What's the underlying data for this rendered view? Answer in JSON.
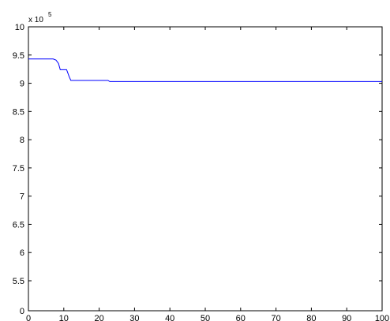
{
  "chart_data": {
    "type": "line",
    "title": "",
    "xlabel": "",
    "ylabel": "",
    "xlim": [
      0,
      100
    ],
    "ylim_display": [
      0,
      10
    ],
    "y_exponent_label": {
      "prefix": "x 10",
      "power": "5"
    },
    "x_ticks": [
      {
        "value": 0,
        "label": "0"
      },
      {
        "value": 10,
        "label": "10"
      },
      {
        "value": 20,
        "label": "20"
      },
      {
        "value": 30,
        "label": "30"
      },
      {
        "value": 40,
        "label": "40"
      },
      {
        "value": 50,
        "label": "50"
      },
      {
        "value": 60,
        "label": "60"
      },
      {
        "value": 70,
        "label": "70"
      },
      {
        "value": 80,
        "label": "80"
      },
      {
        "value": 90,
        "label": "90"
      },
      {
        "value": 100,
        "label": "100"
      }
    ],
    "y_ticks": [
      {
        "value": 10,
        "label": "10"
      },
      {
        "value": 9.5,
        "label": "9.5"
      },
      {
        "value": 9,
        "label": "9"
      },
      {
        "value": 8.5,
        "label": "8.5"
      },
      {
        "value": 8,
        "label": "8"
      },
      {
        "value": 7.5,
        "label": "7.5"
      },
      {
        "value": 7,
        "label": "7"
      },
      {
        "value": 6.5,
        "label": "6.5"
      },
      {
        "value": 6,
        "label": "6"
      },
      {
        "value": 5.5,
        "label": "5.5"
      },
      {
        "value": 0,
        "label": "0"
      }
    ],
    "y_axis_break": {
      "from": 0,
      "to": 5.5
    },
    "grid": false,
    "series": [
      {
        "color": "#0000ff",
        "x": [
          0,
          7,
          7.8,
          8.5,
          9,
          10.8,
          11.5,
          12,
          22.5,
          23,
          100
        ],
        "y": [
          9.43,
          9.43,
          9.41,
          9.35,
          9.24,
          9.24,
          9.12,
          9.05,
          9.05,
          9.03,
          9.03
        ]
      }
    ]
  }
}
